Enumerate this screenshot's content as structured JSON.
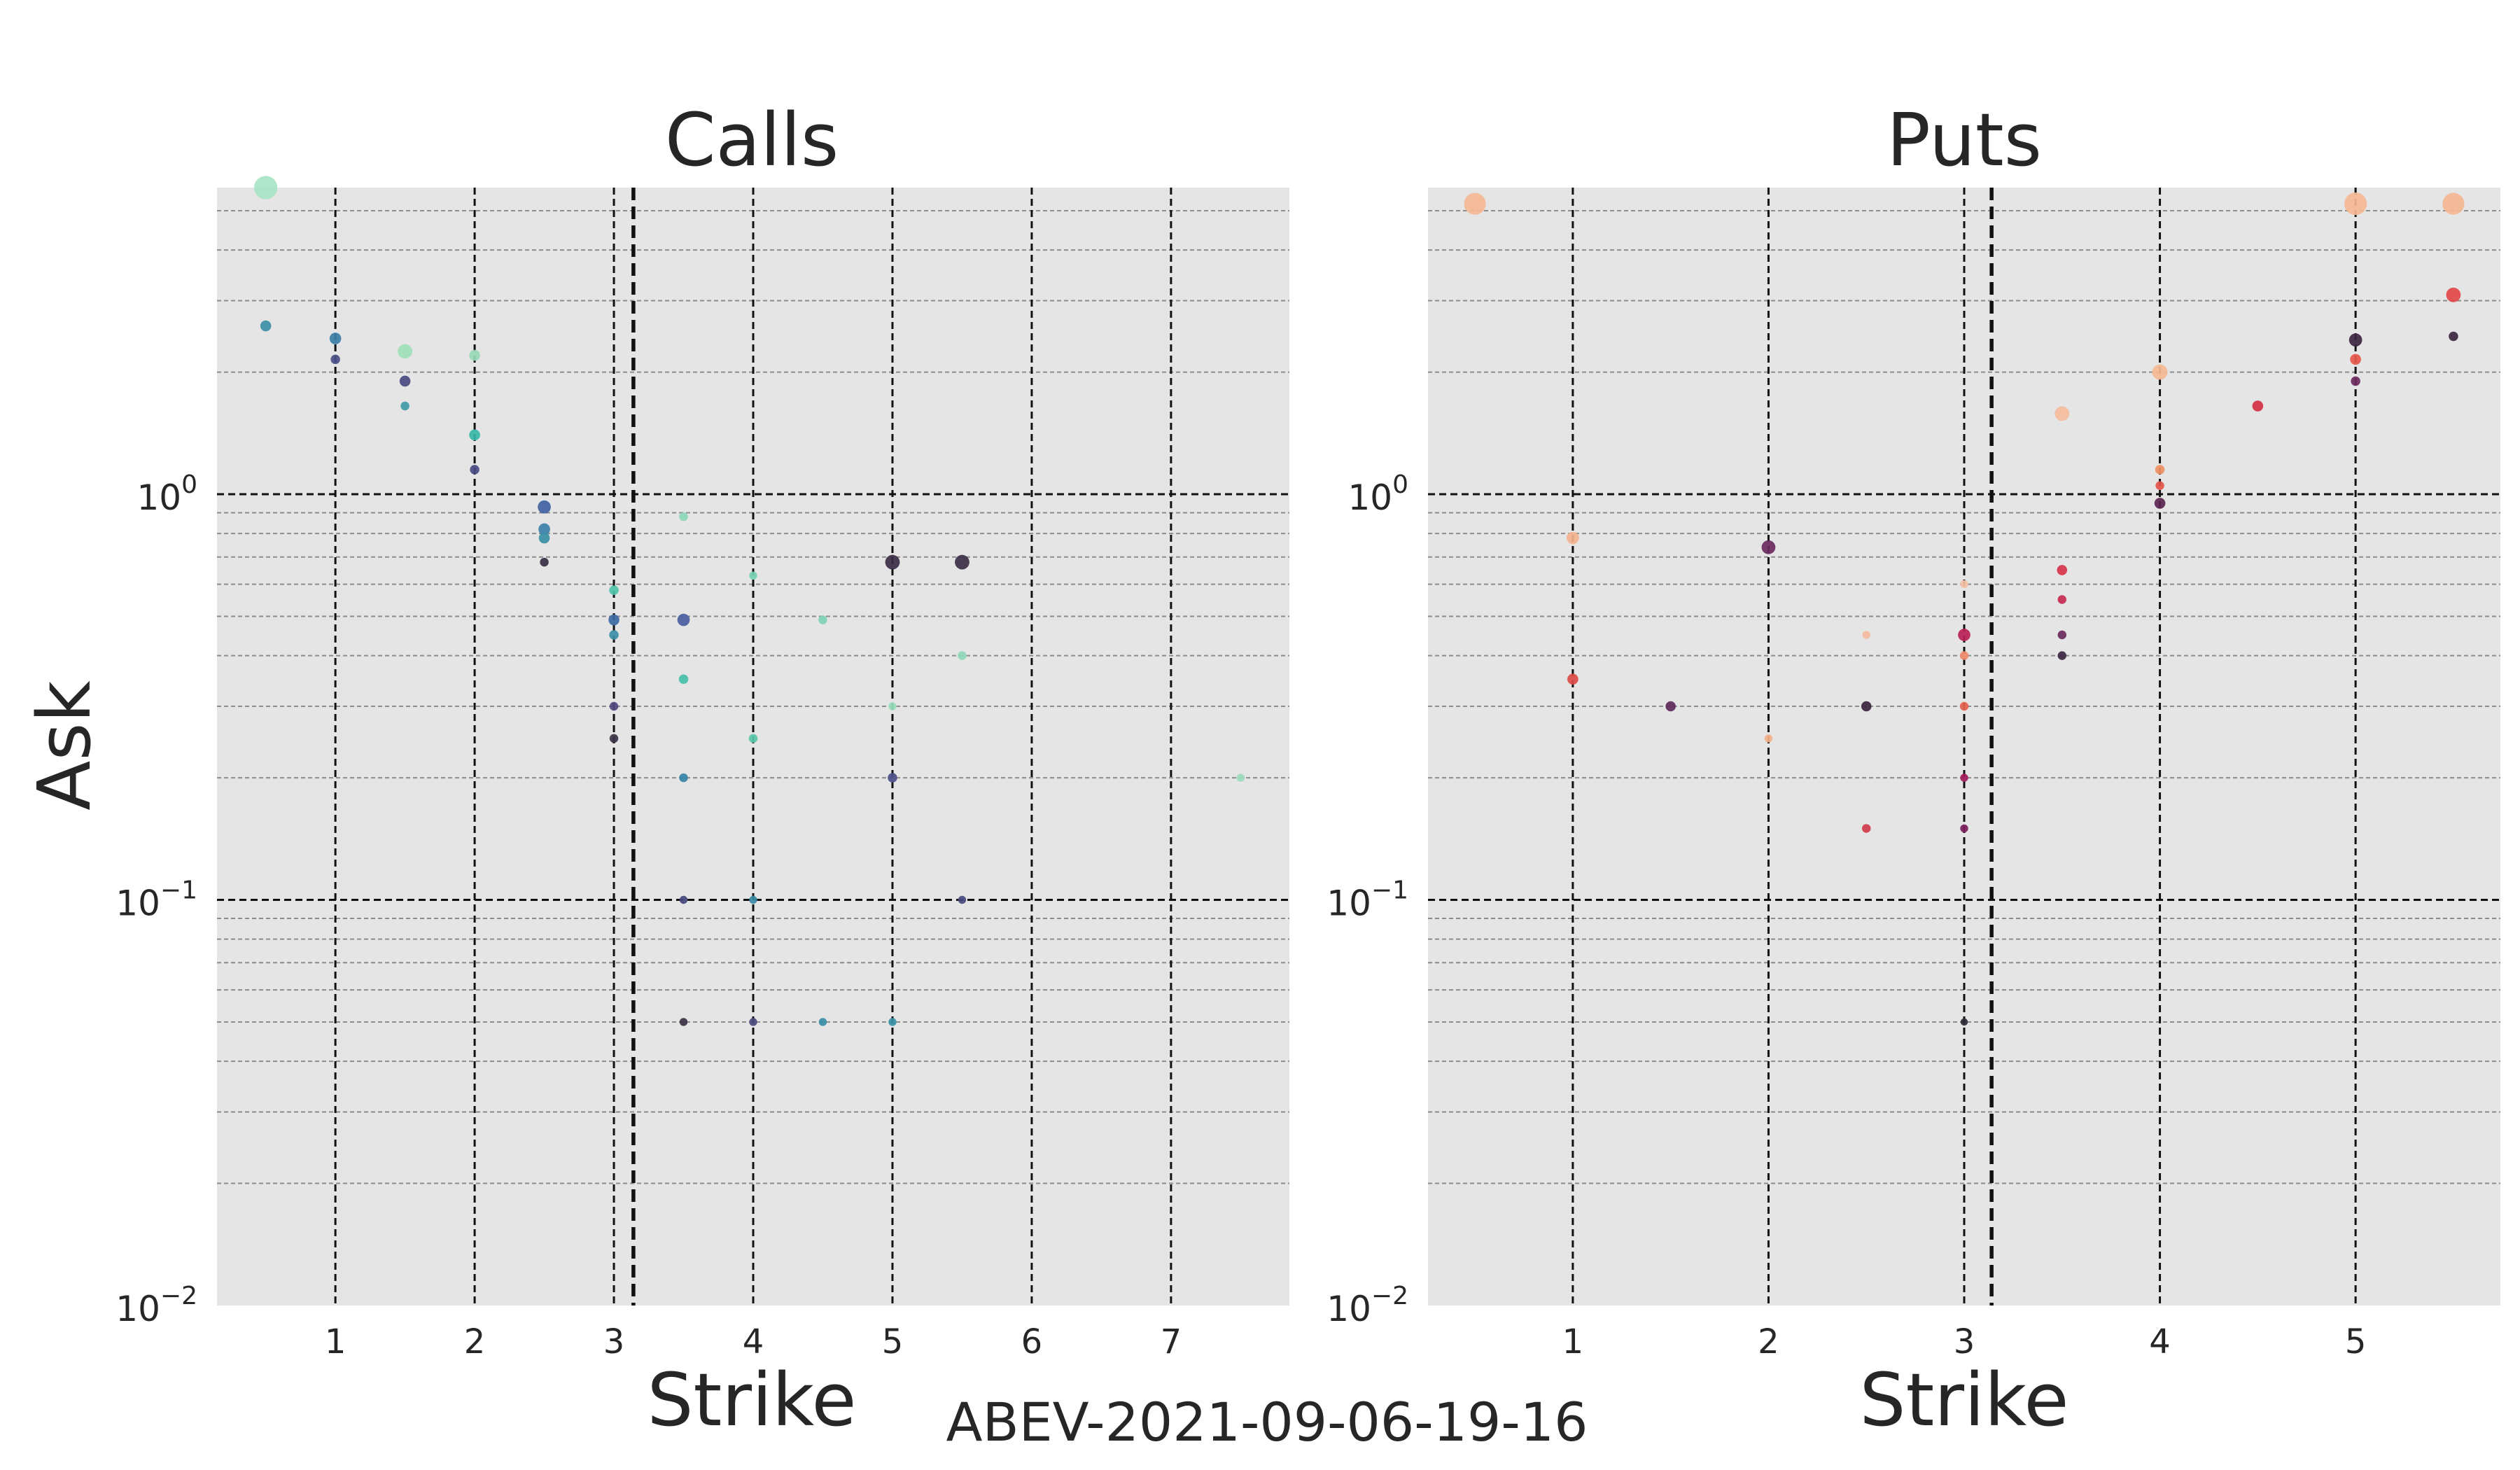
{
  "figure_caption": "ABEV-2021-09-06-19-16",
  "chart_data": [
    {
      "type": "scatter",
      "title": "Calls",
      "xlabel": "Strike",
      "ylabel": "Ask",
      "yscale": "log",
      "ylim": [
        0.01,
        5.7
      ],
      "xlim": [
        0.15,
        7.85
      ],
      "xticks": [
        1,
        2,
        3,
        4,
        5,
        6,
        7
      ],
      "yticks": [
        {
          "value": 0.01,
          "base": "10",
          "exp": "−2"
        },
        {
          "value": 0.1,
          "base": "10",
          "exp": "−1"
        },
        {
          "value": 1,
          "base": "10",
          "exp": "0"
        }
      ],
      "spot_line": 3.14,
      "grid": true,
      "points": [
        {
          "x": 0.5,
          "y": 5.7,
          "size": 3.2,
          "color": "#a6e4c5"
        },
        {
          "x": 0.5,
          "y": 2.6,
          "size": 1.5,
          "color": "#3d8fa6"
        },
        {
          "x": 1.0,
          "y": 2.42,
          "size": 1.6,
          "color": "#3b7fa6"
        },
        {
          "x": 1.0,
          "y": 2.15,
          "size": 1.3,
          "color": "#4a4f85"
        },
        {
          "x": 1.5,
          "y": 2.25,
          "size": 2.0,
          "color": "#9fdfba"
        },
        {
          "x": 1.5,
          "y": 1.9,
          "size": 1.5,
          "color": "#4b4a82"
        },
        {
          "x": 1.5,
          "y": 1.65,
          "size": 1.2,
          "color": "#3f99a8"
        },
        {
          "x": 2.0,
          "y": 2.2,
          "size": 1.5,
          "color": "#9ad9b8"
        },
        {
          "x": 2.0,
          "y": 1.4,
          "size": 1.5,
          "color": "#36b7a8"
        },
        {
          "x": 2.0,
          "y": 1.15,
          "size": 1.3,
          "color": "#4a4c84"
        },
        {
          "x": 2.5,
          "y": 0.93,
          "size": 1.8,
          "color": "#4062a3"
        },
        {
          "x": 2.5,
          "y": 0.82,
          "size": 1.6,
          "color": "#3d80a8"
        },
        {
          "x": 2.5,
          "y": 0.78,
          "size": 1.5,
          "color": "#3a8fa7"
        },
        {
          "x": 2.5,
          "y": 0.68,
          "size": 1.2,
          "color": "#3a2f45"
        },
        {
          "x": 3.0,
          "y": 0.58,
          "size": 1.3,
          "color": "#4ec3aa"
        },
        {
          "x": 3.0,
          "y": 0.49,
          "size": 1.5,
          "color": "#3d6aa3"
        },
        {
          "x": 3.0,
          "y": 0.45,
          "size": 1.3,
          "color": "#3b8ea8"
        },
        {
          "x": 3.0,
          "y": 0.3,
          "size": 1.2,
          "color": "#4f4a7d"
        },
        {
          "x": 3.0,
          "y": 0.25,
          "size": 1.2,
          "color": "#3a3346"
        },
        {
          "x": 3.5,
          "y": 0.88,
          "size": 1.2,
          "color": "#8dd6b6"
        },
        {
          "x": 3.5,
          "y": 0.49,
          "size": 1.7,
          "color": "#4a5da1"
        },
        {
          "x": 3.5,
          "y": 0.35,
          "size": 1.3,
          "color": "#46c0aa"
        },
        {
          "x": 3.5,
          "y": 0.2,
          "size": 1.2,
          "color": "#3583a8"
        },
        {
          "x": 3.5,
          "y": 0.1,
          "size": 1.1,
          "color": "#45477d"
        },
        {
          "x": 3.5,
          "y": 0.05,
          "size": 1.1,
          "color": "#3b3147"
        },
        {
          "x": 4.0,
          "y": 0.63,
          "size": 1.1,
          "color": "#77d0b1"
        },
        {
          "x": 4.0,
          "y": 0.25,
          "size": 1.2,
          "color": "#58c5ab"
        },
        {
          "x": 4.0,
          "y": 0.1,
          "size": 1.1,
          "color": "#3a8ca8"
        },
        {
          "x": 4.0,
          "y": 0.05,
          "size": 1.1,
          "color": "#4a4a7f"
        },
        {
          "x": 4.5,
          "y": 0.49,
          "size": 1.2,
          "color": "#80d3b4"
        },
        {
          "x": 4.5,
          "y": 0.05,
          "size": 1.1,
          "color": "#3a8da8"
        },
        {
          "x": 5.0,
          "y": 0.68,
          "size": 2.0,
          "color": "#3a2e46"
        },
        {
          "x": 5.0,
          "y": 0.3,
          "size": 1.1,
          "color": "#98dcba"
        },
        {
          "x": 5.0,
          "y": 0.2,
          "size": 1.3,
          "color": "#4c4f85"
        },
        {
          "x": 5.0,
          "y": 0.05,
          "size": 1.1,
          "color": "#3991a8"
        },
        {
          "x": 5.5,
          "y": 0.68,
          "size": 2.0,
          "color": "#3b2f47"
        },
        {
          "x": 5.5,
          "y": 0.4,
          "size": 1.2,
          "color": "#8fd7b7"
        },
        {
          "x": 5.5,
          "y": 0.1,
          "size": 1.1,
          "color": "#454a7f"
        },
        {
          "x": 7.5,
          "y": 0.2,
          "size": 1.1,
          "color": "#9bdcbb"
        }
      ]
    },
    {
      "type": "scatter",
      "title": "Puts",
      "xlabel": "Strike",
      "ylabel": "",
      "yscale": "log",
      "ylim": [
        0.01,
        5.7
      ],
      "xlim": [
        0.26,
        5.74
      ],
      "xticks": [
        1,
        2,
        3,
        4,
        5
      ],
      "yticks": [
        {
          "value": 0.01,
          "base": "10",
          "exp": "−2"
        },
        {
          "value": 0.1,
          "base": "10",
          "exp": "−1"
        },
        {
          "value": 1,
          "base": "10",
          "exp": "0"
        }
      ],
      "spot_line": 3.14,
      "grid": true,
      "points": [
        {
          "x": 0.5,
          "y": 5.2,
          "size": 3.0,
          "color": "#f5b995"
        },
        {
          "x": 1.0,
          "y": 0.78,
          "size": 1.7,
          "color": "#f4b390"
        },
        {
          "x": 1.0,
          "y": 0.35,
          "size": 1.5,
          "color": "#dd4a45"
        },
        {
          "x": 1.5,
          "y": 0.3,
          "size": 1.4,
          "color": "#5e2a5a"
        },
        {
          "x": 2.0,
          "y": 0.74,
          "size": 1.9,
          "color": "#6a2a5e"
        },
        {
          "x": 2.0,
          "y": 0.25,
          "size": 1.1,
          "color": "#f4b08a"
        },
        {
          "x": 2.5,
          "y": 0.45,
          "size": 1.1,
          "color": "#f5bba0"
        },
        {
          "x": 2.5,
          "y": 0.3,
          "size": 1.4,
          "color": "#3d2540"
        },
        {
          "x": 2.5,
          "y": 0.15,
          "size": 1.2,
          "color": "#cf3b48"
        },
        {
          "x": 3.0,
          "y": 0.6,
          "size": 1.1,
          "color": "#f6c2a6"
        },
        {
          "x": 3.0,
          "y": 0.45,
          "size": 1.7,
          "color": "#b92257"
        },
        {
          "x": 3.0,
          "y": 0.4,
          "size": 1.2,
          "color": "#f08a6a"
        },
        {
          "x": 3.0,
          "y": 0.3,
          "size": 1.2,
          "color": "#e66350"
        },
        {
          "x": 3.0,
          "y": 0.2,
          "size": 1.1,
          "color": "#a11b5a"
        },
        {
          "x": 3.0,
          "y": 0.15,
          "size": 1.1,
          "color": "#7a1f5c"
        },
        {
          "x": 3.0,
          "y": 0.05,
          "size": 1.0,
          "color": "#2f2a3a"
        },
        {
          "x": 3.5,
          "y": 1.58,
          "size": 2.0,
          "color": "#f5bc9c"
        },
        {
          "x": 3.5,
          "y": 0.65,
          "size": 1.4,
          "color": "#d7334a"
        },
        {
          "x": 3.5,
          "y": 0.55,
          "size": 1.2,
          "color": "#c72a50"
        },
        {
          "x": 3.5,
          "y": 0.45,
          "size": 1.2,
          "color": "#6b2a5e"
        },
        {
          "x": 3.5,
          "y": 0.4,
          "size": 1.2,
          "color": "#3e2742"
        },
        {
          "x": 4.0,
          "y": 2.0,
          "size": 2.1,
          "color": "#f5b893"
        },
        {
          "x": 4.0,
          "y": 1.15,
          "size": 1.3,
          "color": "#f09164"
        },
        {
          "x": 4.0,
          "y": 1.05,
          "size": 1.2,
          "color": "#e4544a"
        },
        {
          "x": 4.0,
          "y": 0.95,
          "size": 1.5,
          "color": "#5a244f"
        },
        {
          "x": 4.5,
          "y": 1.65,
          "size": 1.5,
          "color": "#d22f45"
        },
        {
          "x": 5.0,
          "y": 5.2,
          "size": 3.1,
          "color": "#f5b995"
        },
        {
          "x": 5.0,
          "y": 2.4,
          "size": 1.8,
          "color": "#3c2640"
        },
        {
          "x": 5.0,
          "y": 2.15,
          "size": 1.5,
          "color": "#e6574a"
        },
        {
          "x": 5.0,
          "y": 1.9,
          "size": 1.3,
          "color": "#6c2a5f"
        },
        {
          "x": 5.5,
          "y": 5.2,
          "size": 3.0,
          "color": "#f5b794"
        },
        {
          "x": 5.5,
          "y": 3.1,
          "size": 2.0,
          "color": "#e2484a"
        },
        {
          "x": 5.5,
          "y": 2.45,
          "size": 1.3,
          "color": "#3c2640"
        }
      ]
    }
  ]
}
